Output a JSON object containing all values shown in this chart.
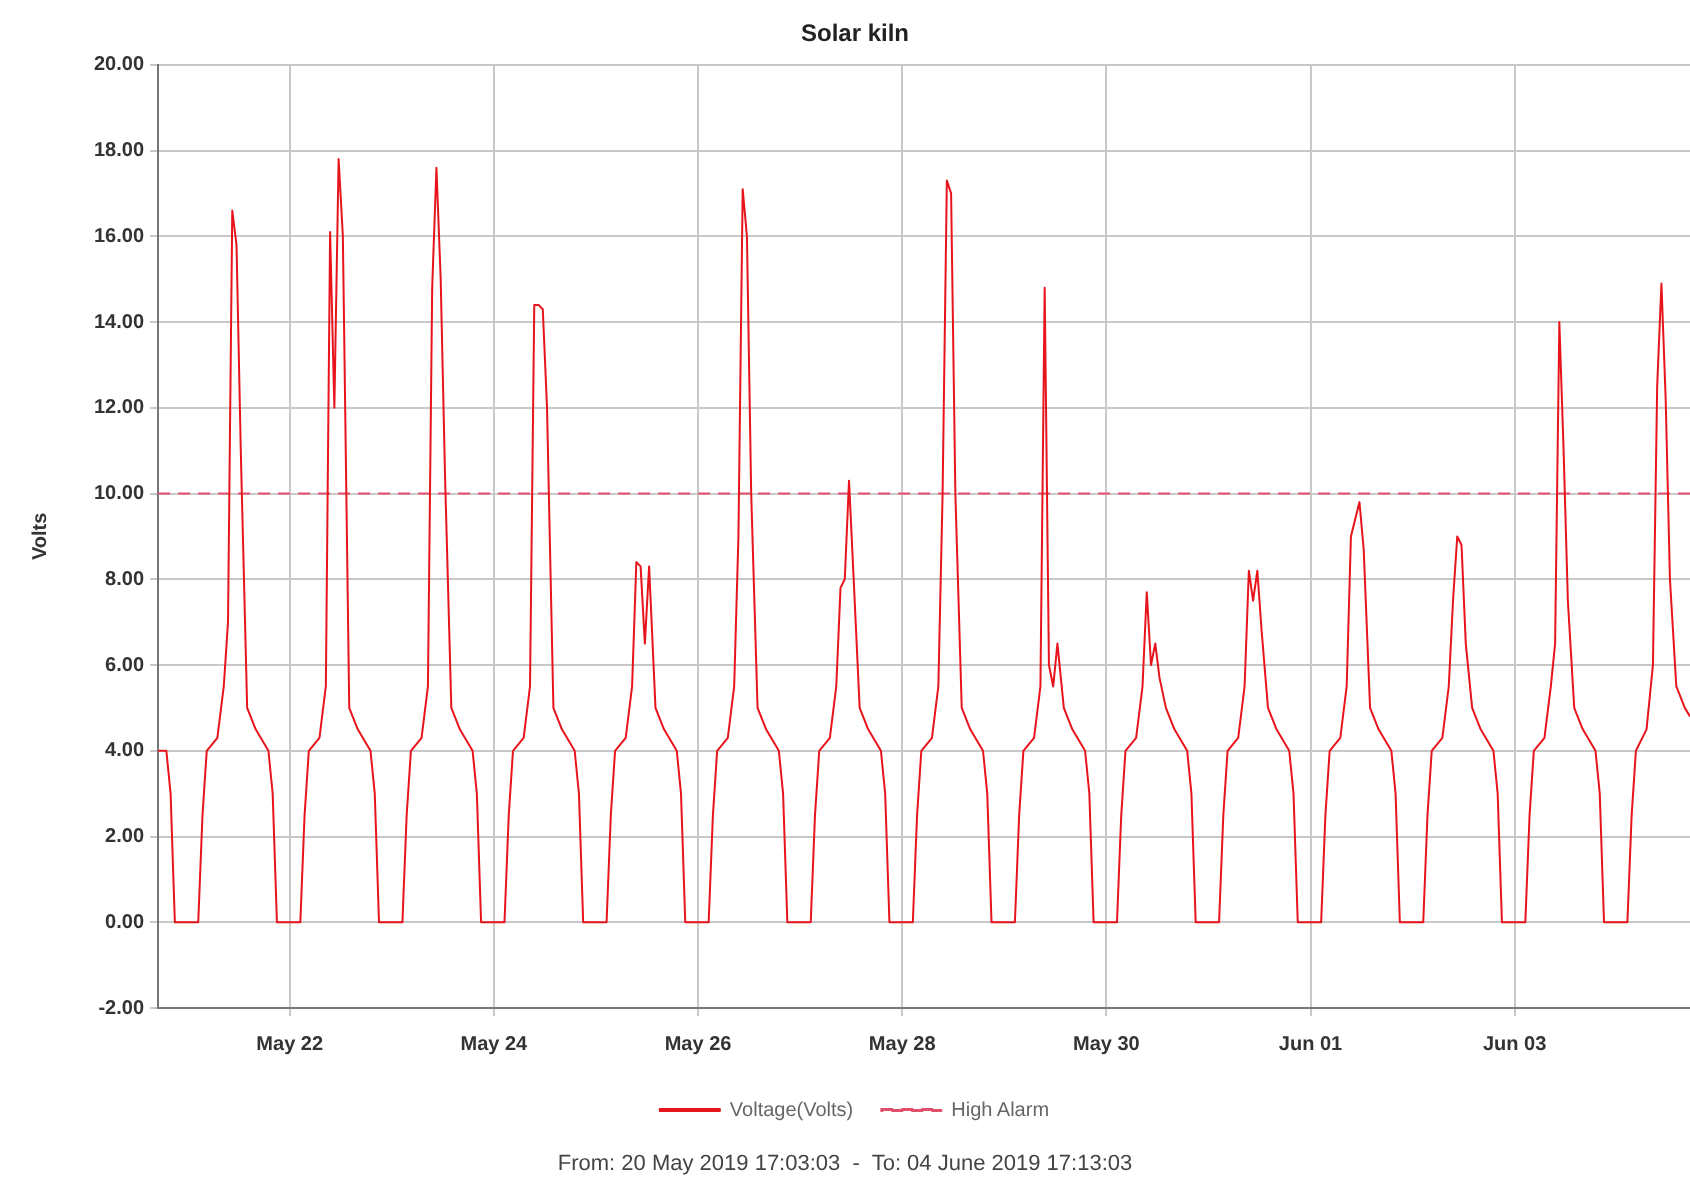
{
  "chart_data": {
    "type": "line",
    "title": "Solar kiln",
    "ylabel": "Volts",
    "xlim": [
      "2019-05-20T17:03",
      "2019-06-04T17:13"
    ],
    "xticks": [
      {
        "value": "2019-05-22",
        "label": "May 22"
      },
      {
        "value": "2019-05-24",
        "label": "May 24"
      },
      {
        "value": "2019-05-26",
        "label": "May 26"
      },
      {
        "value": "2019-05-28",
        "label": "May 28"
      },
      {
        "value": "2019-05-30",
        "label": "May 30"
      },
      {
        "value": "2019-06-01",
        "label": "Jun 01"
      },
      {
        "value": "2019-06-03",
        "label": "Jun 03"
      }
    ],
    "ylim": [
      -2,
      20
    ],
    "yticks": [
      {
        "value": -2,
        "label": "-2.00"
      },
      {
        "value": 0,
        "label": "0.00"
      },
      {
        "value": 2,
        "label": "2.00"
      },
      {
        "value": 4,
        "label": "4.00"
      },
      {
        "value": 6,
        "label": "6.00"
      },
      {
        "value": 8,
        "label": "8.00"
      },
      {
        "value": 10,
        "label": "10.00"
      },
      {
        "value": 12,
        "label": "12.00"
      },
      {
        "value": 14,
        "label": "14.00"
      },
      {
        "value": 16,
        "label": "16.00"
      },
      {
        "value": 18,
        "label": "18.00"
      },
      {
        "value": 20,
        "label": "20.00"
      }
    ],
    "grid": true,
    "legend": "bottom",
    "marker": "none",
    "annotations": [
      "From: 20 May 2019 17:03:03  -  To: 04 June 2019 17:13:03"
    ],
    "series": [
      {
        "name": "Voltage(Volts)",
        "color": "#e8141c",
        "line_style": "solid",
        "x": [
          "2019-05-20T17:03",
          "2019-05-20T19:00",
          "2019-05-20T20:00",
          "2019-05-20T21:00",
          "2019-05-21T02:30",
          "2019-05-21T03:30",
          "2019-05-21T04:30",
          "2019-05-21T07:00",
          "2019-05-21T08:30",
          "2019-05-21T09:30",
          "2019-05-21T10:30",
          "2019-05-21T11:30",
          "2019-05-21T12:30",
          "2019-05-21T14:00",
          "2019-05-21T16:00",
          "2019-05-21T19:00",
          "2019-05-21T20:00",
          "2019-05-21T21:00",
          "2019-05-22T02:30",
          "2019-05-22T03:30",
          "2019-05-22T04:30",
          "2019-05-22T07:00",
          "2019-05-22T08:30",
          "2019-05-22T09:30",
          "2019-05-22T10:30",
          "2019-05-22T11:30",
          "2019-05-22T12:30",
          "2019-05-22T14:00",
          "2019-05-22T16:00",
          "2019-05-22T19:00",
          "2019-05-22T20:00",
          "2019-05-22T21:00",
          "2019-05-23T02:30",
          "2019-05-23T03:30",
          "2019-05-23T04:30",
          "2019-05-23T07:00",
          "2019-05-23T08:30",
          "2019-05-23T09:30",
          "2019-05-23T10:30",
          "2019-05-23T11:30",
          "2019-05-23T12:30",
          "2019-05-23T14:00",
          "2019-05-23T16:00",
          "2019-05-23T19:00",
          "2019-05-23T20:00",
          "2019-05-23T21:00",
          "2019-05-24T02:30",
          "2019-05-24T03:30",
          "2019-05-24T04:30",
          "2019-05-24T07:00",
          "2019-05-24T08:30",
          "2019-05-24T09:30",
          "2019-05-24T10:30",
          "2019-05-24T11:30",
          "2019-05-24T12:30",
          "2019-05-24T14:00",
          "2019-05-24T16:00",
          "2019-05-24T19:00",
          "2019-05-24T20:00",
          "2019-05-24T21:00",
          "2019-05-25T02:30",
          "2019-05-25T03:30",
          "2019-05-25T04:30",
          "2019-05-25T07:00",
          "2019-05-25T08:30",
          "2019-05-25T09:30",
          "2019-05-25T10:30",
          "2019-05-25T11:30",
          "2019-05-25T12:30",
          "2019-05-25T14:00",
          "2019-05-25T16:00",
          "2019-05-25T19:00",
          "2019-05-25T20:00",
          "2019-05-25T21:00",
          "2019-05-26T02:30",
          "2019-05-26T03:30",
          "2019-05-26T04:30",
          "2019-05-26T07:00",
          "2019-05-26T08:30",
          "2019-05-26T09:30",
          "2019-05-26T10:30",
          "2019-05-26T11:30",
          "2019-05-26T12:30",
          "2019-05-26T14:00",
          "2019-05-26T16:00",
          "2019-05-26T19:00",
          "2019-05-26T20:00",
          "2019-05-26T21:00",
          "2019-05-27T02:30",
          "2019-05-27T03:30",
          "2019-05-27T04:30",
          "2019-05-27T07:00",
          "2019-05-27T08:30",
          "2019-05-27T09:30",
          "2019-05-27T10:30",
          "2019-05-27T11:30",
          "2019-05-27T12:30",
          "2019-05-27T14:00",
          "2019-05-27T16:00",
          "2019-05-27T19:00",
          "2019-05-27T20:00",
          "2019-05-27T21:00",
          "2019-05-28T02:30",
          "2019-05-28T03:30",
          "2019-05-28T04:30",
          "2019-05-28T07:00",
          "2019-05-28T08:30",
          "2019-05-28T09:30",
          "2019-05-28T10:30",
          "2019-05-28T11:30",
          "2019-05-28T12:30",
          "2019-05-28T14:00",
          "2019-05-28T16:00",
          "2019-05-28T19:00",
          "2019-05-28T20:00",
          "2019-05-28T21:00",
          "2019-05-29T02:30",
          "2019-05-29T03:30",
          "2019-05-29T04:30",
          "2019-05-29T07:00",
          "2019-05-29T08:30",
          "2019-05-29T09:30",
          "2019-05-29T10:30",
          "2019-05-29T11:30",
          "2019-05-29T12:30",
          "2019-05-29T14:00",
          "2019-05-29T16:00",
          "2019-05-29T19:00",
          "2019-05-29T20:00",
          "2019-05-29T21:00",
          "2019-05-30T02:30",
          "2019-05-30T03:30",
          "2019-05-30T04:30",
          "2019-05-30T07:00",
          "2019-05-30T08:30",
          "2019-05-30T09:30",
          "2019-05-30T10:30",
          "2019-05-30T11:30",
          "2019-05-30T12:30",
          "2019-05-30T14:00",
          "2019-05-30T16:00",
          "2019-05-30T19:00",
          "2019-05-30T20:00",
          "2019-05-30T21:00",
          "2019-05-31T02:30",
          "2019-05-31T03:30",
          "2019-05-31T04:30",
          "2019-05-31T07:00",
          "2019-05-31T08:30",
          "2019-05-31T09:30",
          "2019-05-31T10:30",
          "2019-05-31T11:30",
          "2019-05-31T12:30",
          "2019-05-31T14:00",
          "2019-05-31T16:00",
          "2019-05-31T19:00",
          "2019-05-31T20:00",
          "2019-05-31T21:00",
          "2019-06-01T02:30",
          "2019-06-01T03:30",
          "2019-06-01T04:30",
          "2019-06-01T07:00",
          "2019-06-01T08:30",
          "2019-06-01T09:30",
          "2019-06-01T10:30",
          "2019-06-01T11:30",
          "2019-06-01T12:30",
          "2019-06-01T14:00",
          "2019-06-01T16:00",
          "2019-06-01T19:00",
          "2019-06-01T20:00",
          "2019-06-01T21:00",
          "2019-06-02T02:30",
          "2019-06-02T03:30",
          "2019-06-02T04:30",
          "2019-06-02T07:00",
          "2019-06-02T08:30",
          "2019-06-02T09:30",
          "2019-06-02T10:30",
          "2019-06-02T11:30",
          "2019-06-02T12:30",
          "2019-06-02T14:00",
          "2019-06-02T16:00",
          "2019-06-02T19:00",
          "2019-06-02T20:00",
          "2019-06-02T21:00",
          "2019-06-03T02:30",
          "2019-06-03T03:30",
          "2019-06-03T04:30",
          "2019-06-03T07:00",
          "2019-06-03T08:30",
          "2019-06-03T09:30",
          "2019-06-03T10:30",
          "2019-06-03T11:30",
          "2019-06-03T12:30",
          "2019-06-03T14:00",
          "2019-06-03T16:00",
          "2019-06-03T19:00",
          "2019-06-03T20:00",
          "2019-06-03T21:00",
          "2019-06-04T02:30",
          "2019-06-04T03:30",
          "2019-06-04T04:30",
          "2019-06-04T07:00",
          "2019-06-04T08:30",
          "2019-06-04T09:30",
          "2019-06-04T10:30",
          "2019-06-04T11:30",
          "2019-06-04T12:30",
          "2019-06-04T14:00",
          "2019-06-04T16:00",
          "2019-06-04T17:13"
        ],
        "values": [
          4,
          4,
          3,
          0,
          0,
          2.5,
          4,
          4.3,
          5.5,
          7,
          16.6,
          15.8,
          11,
          5,
          4.5,
          4,
          3,
          0,
          0,
          2.5,
          4,
          4.3,
          5.5,
          16.1,
          12,
          17.8,
          16,
          5,
          4.5,
          4,
          3,
          0,
          0,
          2.5,
          4,
          4.3,
          5.5,
          14.8,
          17.6,
          15,
          10.5,
          5,
          4.5,
          4,
          3,
          0,
          0,
          2.5,
          4,
          4.3,
          5.5,
          14.4,
          14.4,
          14.3,
          12,
          5,
          4.5,
          4,
          3,
          0,
          0,
          2.5,
          4,
          4.3,
          5.5,
          8.4,
          8.3,
          6.5,
          8.3,
          5,
          4.5,
          4,
          3,
          0,
          0,
          2.5,
          4,
          4.3,
          5.5,
          9,
          17.1,
          16,
          10,
          5,
          4.5,
          4,
          3,
          0,
          0,
          2.5,
          4,
          4.3,
          5.5,
          7.8,
          8,
          10.3,
          8.2,
          5,
          4.5,
          4,
          3,
          0,
          0,
          2.5,
          4,
          4.3,
          5.5,
          10,
          17.3,
          17,
          10,
          5,
          4.5,
          4,
          3,
          0,
          0,
          2.5,
          4,
          4.3,
          5.5,
          14.8,
          6,
          5.5,
          6.5,
          5,
          4.5,
          4,
          3,
          0,
          0,
          2.5,
          4,
          4.3,
          5.5,
          7.7,
          6,
          6.5,
          5.7,
          5,
          4.5,
          4,
          3,
          0,
          0,
          2.5,
          4,
          4.3,
          5.5,
          8.2,
          7.5,
          8.2,
          6.8,
          5,
          4.5,
          4,
          3,
          0,
          0,
          2.5,
          4,
          4.3,
          5.5,
          9,
          9.4,
          9.8,
          8.7,
          5,
          4.5,
          4,
          3,
          0,
          0,
          2.5,
          4,
          4.3,
          5.5,
          7.5,
          9,
          8.8,
          6.5,
          5,
          4.5,
          4,
          3,
          0,
          0,
          2.5,
          4,
          4.3,
          5.5,
          6.5,
          14,
          11,
          7.5,
          5,
          4.5,
          4,
          3,
          0,
          0,
          2.5,
          4,
          4.5,
          6,
          12.5,
          14.9,
          12.2,
          8,
          5.5,
          5,
          4.8
        ]
      },
      {
        "name": "High Alarm",
        "color": "#e0506a",
        "line_style": "dashed",
        "x": [
          "2019-05-20T17:03",
          "2019-06-04T17:13"
        ],
        "values": [
          10,
          10
        ]
      }
    ]
  }
}
